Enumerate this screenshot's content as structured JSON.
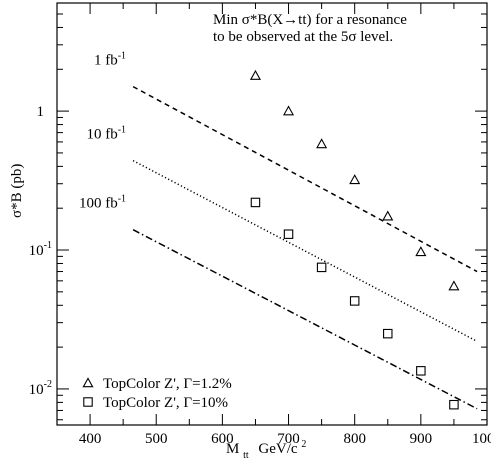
{
  "chart_data": {
    "type": "line",
    "title_lines": [
      "Min σ*B(X→tt) for a resonance",
      "to be observed at the 5σ level."
    ],
    "ylabel": "σ*B    (pb)",
    "xlabel_main": "M",
    "xlabel_sub": "tt",
    "xlabel_units": "GeV/c",
    "xlabel_units_sup": "2",
    "xlim": [
      350,
      1000
    ],
    "ylim": [
      0.0055,
      6.0
    ],
    "yscale": "log",
    "x_ticks": [
      400,
      500,
      600,
      700,
      800,
      900,
      1000
    ],
    "x_tick_labels": [
      "400",
      "500",
      "600",
      "700",
      "800",
      "900",
      "1000"
    ],
    "y_ticks": [
      0.01,
      0.1,
      1
    ],
    "y_tick_labels": [
      {
        "base": "10",
        "exp": "-2"
      },
      {
        "base": "10",
        "exp": "-1"
      },
      {
        "base": "1",
        "exp": ""
      }
    ],
    "lines": [
      {
        "label": "1 fb",
        "label_sup": "-1",
        "style": "dashed",
        "x": [
          465,
          985
        ],
        "y": [
          1.5,
          0.07
        ]
      },
      {
        "label": "10 fb",
        "label_sup": "-1",
        "style": "dotted",
        "x": [
          465,
          985
        ],
        "y": [
          0.44,
          0.022
        ]
      },
      {
        "label": "100 fb",
        "label_sup": "-1",
        "style": "dashdot",
        "x": [
          465,
          985
        ],
        "y": [
          0.14,
          0.0072
        ]
      }
    ],
    "series": [
      {
        "name": "TopColor Z', Γ=1.2%",
        "marker": "triangle",
        "x": [
          650,
          700,
          750,
          800,
          850,
          900,
          950
        ],
        "y": [
          1.8,
          1.0,
          0.58,
          0.32,
          0.175,
          0.097,
          0.055
        ]
      },
      {
        "name": "TopColor Z', Γ=10%",
        "marker": "square",
        "x": [
          650,
          700,
          750,
          800,
          850,
          900,
          950
        ],
        "y": [
          0.22,
          0.13,
          0.075,
          0.043,
          0.025,
          0.0135,
          0.0077
        ]
      }
    ]
  }
}
